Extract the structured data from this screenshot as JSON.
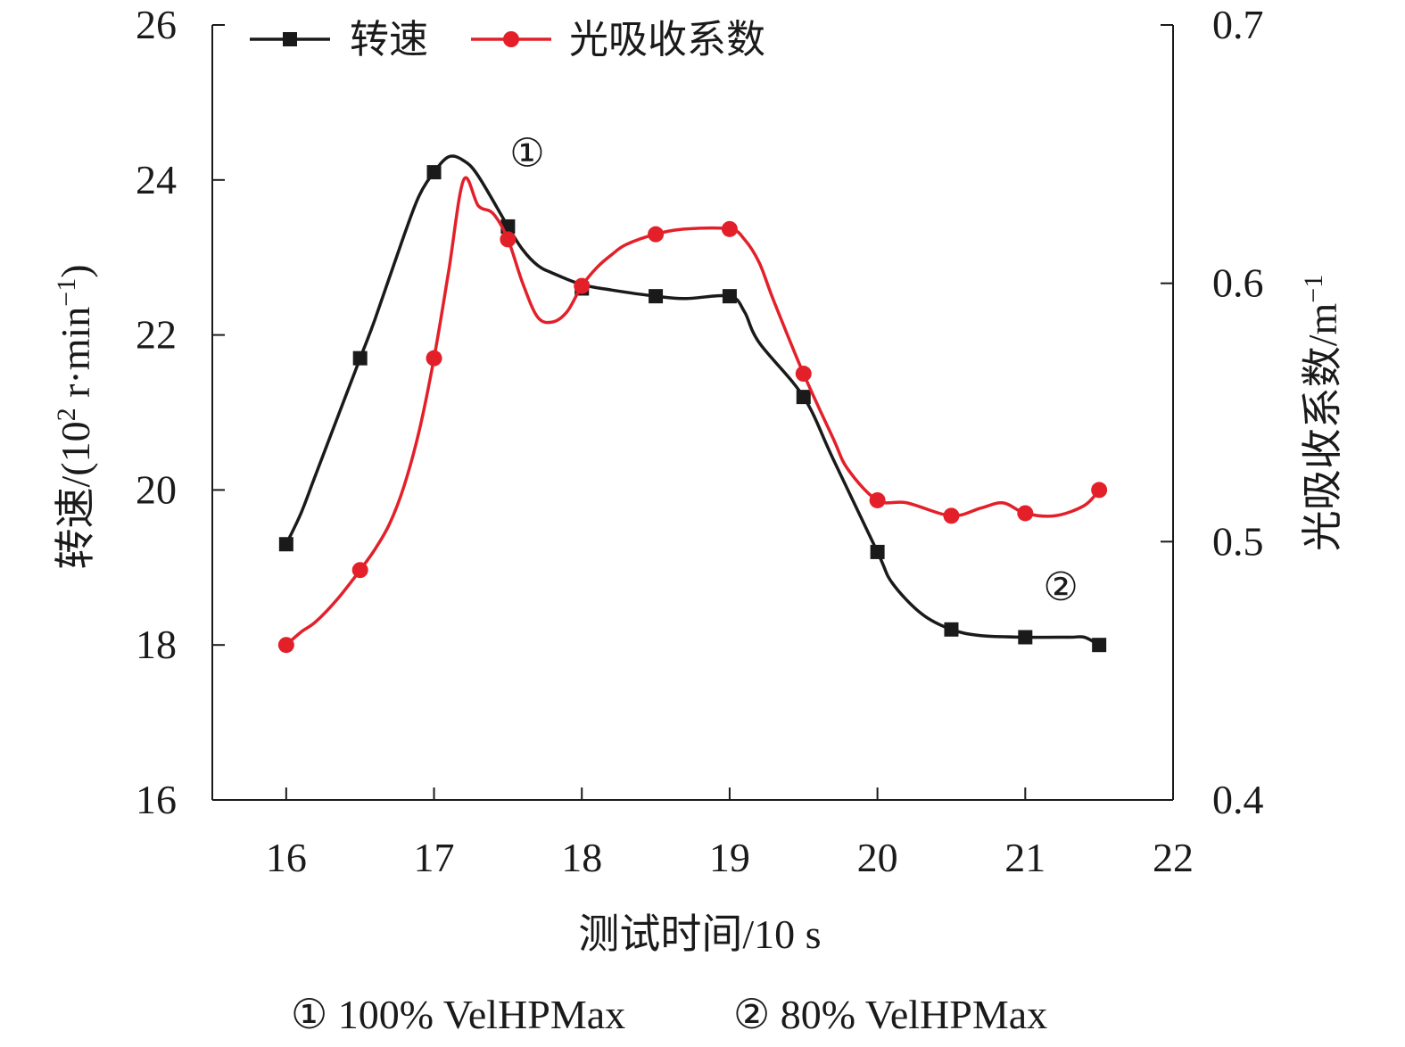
{
  "chart_data": {
    "type": "line",
    "x": [
      16,
      16.5,
      17,
      17.5,
      18,
      18.5,
      19,
      19.5,
      20,
      20.5,
      21,
      21.5
    ],
    "xlim": [
      15.5,
      22
    ],
    "xticks": [
      "16",
      "17",
      "18",
      "19",
      "20",
      "21",
      "22"
    ],
    "xlabel": "测试时间/10 s",
    "y_left": {
      "label_main": "转速/(10",
      "label_sup1": "2",
      "label_mid": " r·min",
      "label_sup2": "−1",
      "label_end": ")",
      "ylim": [
        16,
        26
      ],
      "ticks": [
        "16",
        "18",
        "20",
        "22",
        "24",
        "26"
      ]
    },
    "y_right": {
      "label_main": "光吸收系数/m",
      "label_sup": "−1",
      "ylim": [
        0.4,
        0.7
      ],
      "ticks": [
        "0.4",
        "0.5",
        "0.6",
        "0.7"
      ]
    },
    "series": [
      {
        "name": "转速",
        "axis": "left",
        "color": "#1a1a1a",
        "marker": "square",
        "values": [
          19.3,
          21.7,
          24.1,
          23.4,
          22.6,
          22.5,
          22.5,
          21.2,
          19.2,
          18.2,
          18.1,
          18.0
        ],
        "curve_x": [
          16,
          16.1,
          16.2,
          16.4,
          16.5,
          16.6,
          16.8,
          16.9,
          17,
          17.1,
          17.2,
          17.3,
          17.5,
          17.6,
          17.7,
          17.8,
          18,
          18.2,
          18.5,
          18.7,
          19,
          19.1,
          19.2,
          19.5,
          19.7,
          20,
          20.1,
          20.3,
          20.5,
          20.7,
          21,
          21.3,
          21.4,
          21.5
        ],
        "curve_y": [
          19.3,
          19.7,
          20.2,
          21.2,
          21.7,
          22.2,
          23.3,
          23.8,
          24.1,
          24.3,
          24.25,
          24.05,
          23.4,
          23.1,
          22.9,
          22.8,
          22.65,
          22.58,
          22.5,
          22.47,
          22.5,
          22.3,
          21.9,
          21.2,
          20.4,
          19.2,
          18.8,
          18.4,
          18.2,
          18.12,
          18.1,
          18.1,
          18.1,
          18.0
        ]
      },
      {
        "name": "光吸收系数",
        "axis": "right",
        "color": "#e3202a",
        "marker": "circle",
        "values": [
          0.46,
          0.489,
          0.571,
          0.617,
          0.599,
          0.619,
          0.621,
          0.565,
          0.516,
          0.51,
          0.511,
          0.52
        ],
        "curve_x": [
          16,
          16.1,
          16.2,
          16.35,
          16.5,
          16.6,
          16.7,
          16.8,
          16.9,
          17,
          17.1,
          17.2,
          17.3,
          17.4,
          17.5,
          17.6,
          17.7,
          17.8,
          17.9,
          18,
          18.1,
          18.2,
          18.3,
          18.5,
          18.7,
          19,
          19.1,
          19.2,
          19.3,
          19.5,
          19.7,
          19.8,
          20,
          20.2,
          20.5,
          20.7,
          20.85,
          21,
          21.2,
          21.4,
          21.5
        ],
        "curve_y": [
          0.46,
          0.465,
          0.469,
          0.478,
          0.489,
          0.497,
          0.507,
          0.522,
          0.543,
          0.571,
          0.605,
          0.64,
          0.63,
          0.627,
          0.617,
          0.6,
          0.587,
          0.585,
          0.589,
          0.599,
          0.606,
          0.611,
          0.615,
          0.619,
          0.621,
          0.621,
          0.617,
          0.608,
          0.593,
          0.565,
          0.54,
          0.528,
          0.516,
          0.515,
          0.51,
          0.513,
          0.515,
          0.511,
          0.51,
          0.514,
          0.52
        ]
      }
    ],
    "annotations": [
      {
        "text": "①",
        "x": 17.63,
        "y": 24.35,
        "axis": "left"
      },
      {
        "text": "②",
        "x": 21.24,
        "y": 18.75,
        "axis": "left"
      }
    ],
    "legend": {
      "position": "top-left",
      "entries": [
        "转速",
        "光吸收系数"
      ]
    },
    "footnote": [
      "① 100% VelHPMax",
      "② 80% VelHPMax"
    ]
  }
}
